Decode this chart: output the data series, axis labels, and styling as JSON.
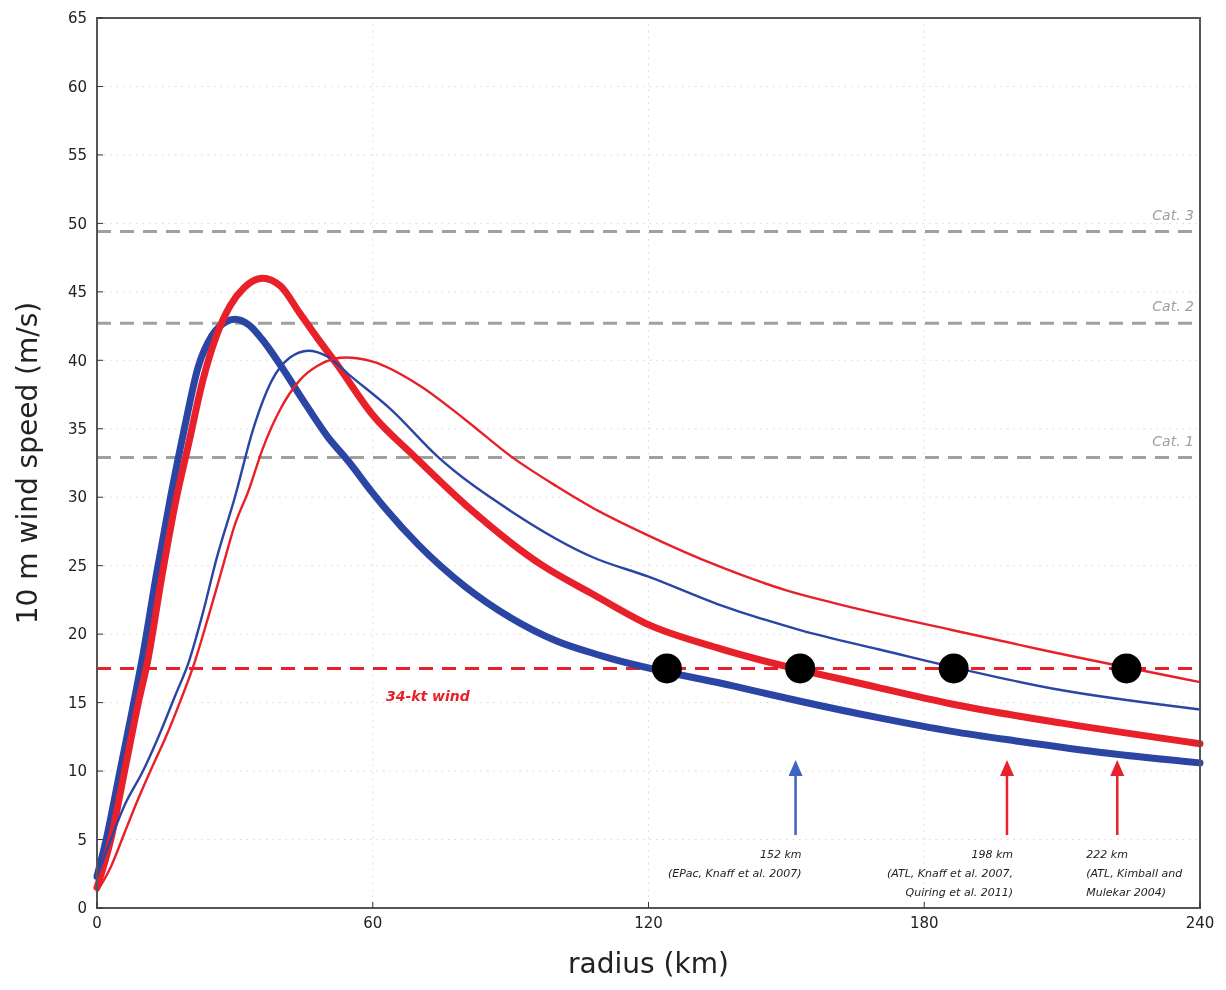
{
  "chart_data": {
    "type": "line",
    "xlabel": "radius (km)",
    "ylabel": "10 m wind speed (m/s)",
    "xlim": [
      0,
      240
    ],
    "xticks": [
      0,
      60,
      120,
      180,
      240
    ],
    "ylim": [
      0,
      65
    ],
    "yticks": [
      0,
      5,
      10,
      15,
      20,
      25,
      30,
      35,
      40,
      45,
      50,
      55,
      60,
      65
    ],
    "grid": true,
    "line_style": "solid",
    "marker": "none",
    "series": [
      {
        "color": "#2a45a3",
        "x": [
          0,
          2,
          5,
          8,
          10,
          13,
          16,
          19,
          22,
          25,
          28,
          30,
          33,
          36,
          40,
          45,
          50,
          55,
          60,
          70,
          80,
          90,
          100,
          110,
          140,
          153,
          170,
          186,
          200,
          220,
          240
        ],
        "values": [
          2.3,
          5,
          10,
          15,
          18.5,
          24.5,
          30,
          35,
          39.5,
          41.8,
          42.8,
          43,
          42.6,
          41.5,
          39.6,
          37,
          34.5,
          32.5,
          30.3,
          26.5,
          23.5,
          21.2,
          19.5,
          18.4,
          16.1,
          15.1,
          13.9,
          12.9,
          12.2,
          11.3,
          10.6
        ]
      },
      {
        "color": "#e8202a",
        "x": [
          0,
          3,
          6,
          9,
          11,
          14,
          17,
          20,
          23,
          26,
          29,
          32,
          36,
          40,
          44,
          48,
          52,
          60,
          69,
          80,
          97,
          108,
          120,
          135,
          170,
          186,
          210,
          240
        ],
        "values": [
          1.5,
          5,
          10,
          15,
          18,
          24,
          29.5,
          34,
          38.5,
          41.8,
          44,
          45.3,
          46,
          45.4,
          43.5,
          41.6,
          39.8,
          36,
          33,
          29.5,
          25,
          22.9,
          20.7,
          19,
          16.1,
          14.9,
          13.5,
          12
        ]
      },
      {
        "color": "#2a45a3",
        "x": [
          0,
          3,
          6,
          10,
          14,
          17,
          20,
          23,
          26,
          30,
          34,
          38,
          42,
          46,
          50,
          55,
          64,
          74,
          90,
          108,
          120,
          135,
          153,
          170,
          210,
          240
        ],
        "values": [
          2.3,
          5,
          7.5,
          10,
          13,
          15.5,
          18,
          21.5,
          25.5,
          30,
          35,
          38.5,
          40.2,
          40.7,
          40.3,
          38.9,
          36.4,
          33,
          29,
          25.6,
          24.2,
          22.2,
          20.3,
          18.9,
          15.9,
          14.5
        ]
      },
      {
        "color": "#e8202a",
        "x": [
          0,
          3,
          6,
          9,
          12,
          15,
          18,
          21,
          24,
          27,
          30,
          33,
          36,
          40,
          44,
          48,
          54,
          60,
          70,
          80,
          90,
          100,
          108,
          120,
          135,
          150,
          160,
          186,
          205,
          240
        ],
        "values": [
          1.2,
          3,
          5.5,
          8,
          10.3,
          12.5,
          15,
          17.7,
          21,
          24.5,
          28,
          30.5,
          33.5,
          36.5,
          38.5,
          39.6,
          40.2,
          39.9,
          38.2,
          35.7,
          33,
          30.8,
          29.2,
          27.2,
          25,
          23.2,
          22.3,
          20.3,
          18.9,
          16.5
        ]
      },
      {
        "type": "scatter",
        "marker": "circle",
        "color": "#000000",
        "x": [
          124,
          153,
          186.4,
          224
        ],
        "values": [
          17.5,
          17.5,
          17.5,
          17.5
        ]
      }
    ],
    "ref_lines": [
      {
        "axis": "y",
        "value": 32.9,
        "label": "Cat. 1",
        "color": "#a0a0a0",
        "line_style": "dashed"
      },
      {
        "axis": "y",
        "value": 42.7,
        "label": "Cat. 2",
        "color": "#a0a0a0",
        "line_style": "dashed"
      },
      {
        "axis": "y",
        "value": 49.4,
        "label": "Cat. 3",
        "color": "#a0a0a0",
        "line_style": "dashed"
      },
      {
        "axis": "y",
        "value": 17.5,
        "label": "34-kt wind",
        "color": "#e8202a",
        "line_style": "dashed"
      }
    ],
    "annotations": [
      "152 km\n(EPac, Knaff et al. 2007)",
      "198 km\n(ATL, Knaff et al. 2007,\nQuiring et al. 2011)",
      "222 km\n(ATL, Kimball and\nMulekar 2004)"
    ]
  }
}
